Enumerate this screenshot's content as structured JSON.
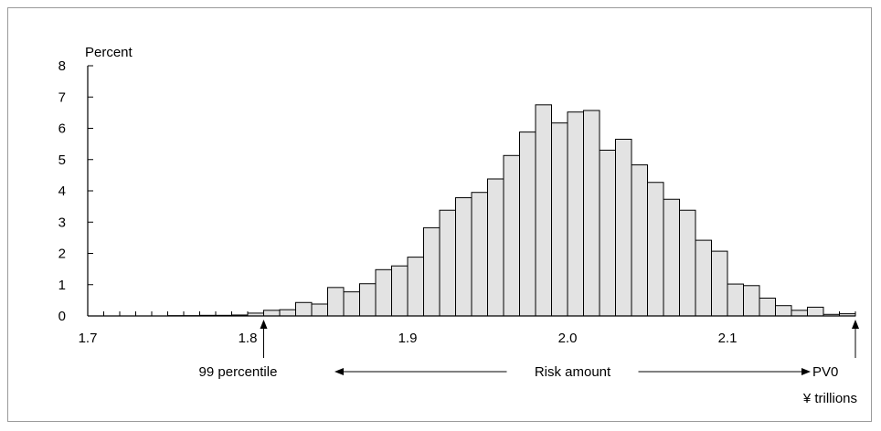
{
  "chart_data": {
    "type": "bar",
    "ylabel": "Percent",
    "xunit": "¥ trillions",
    "ylim": [
      0,
      8
    ],
    "xlim": [
      1.7,
      2.18
    ],
    "yticks": [
      "0",
      "1",
      "2",
      "3",
      "4",
      "5",
      "6",
      "7",
      "8"
    ],
    "xticks": [
      {
        "value": 1.7,
        "label": "1.7"
      },
      {
        "value": 1.8,
        "label": "1.8"
      },
      {
        "value": 1.9,
        "label": "1.9"
      },
      {
        "value": 2.0,
        "label": "2.0"
      },
      {
        "value": 2.1,
        "label": "2.1"
      }
    ],
    "bin_width": 0.01,
    "bins_start": 1.7,
    "values": [
      0,
      0,
      0,
      0,
      0,
      0.01,
      0.01,
      0.02,
      0.02,
      0.03,
      0.09,
      0.18,
      0.2,
      0.43,
      0.38,
      0.91,
      0.77,
      1.03,
      1.48,
      1.6,
      1.88,
      2.82,
      3.38,
      3.78,
      3.95,
      4.38,
      5.13,
      5.88,
      6.75,
      6.17,
      6.52,
      6.57,
      5.3,
      5.65,
      4.83,
      4.27,
      3.73,
      3.38,
      2.42,
      2.07,
      1.02,
      0.97,
      0.57,
      0.33,
      0.18,
      0.28,
      0.05,
      0.07
    ],
    "annotations": {
      "percentile_label": "99 percentile",
      "percentile_x": 1.81,
      "risk_label": "Risk amount",
      "pv_label": "PV0",
      "pv_x": 2.18
    },
    "colors": {
      "bar_fill": "#e3e3e3",
      "bar_stroke": "#000000",
      "axis": "#000000"
    }
  }
}
